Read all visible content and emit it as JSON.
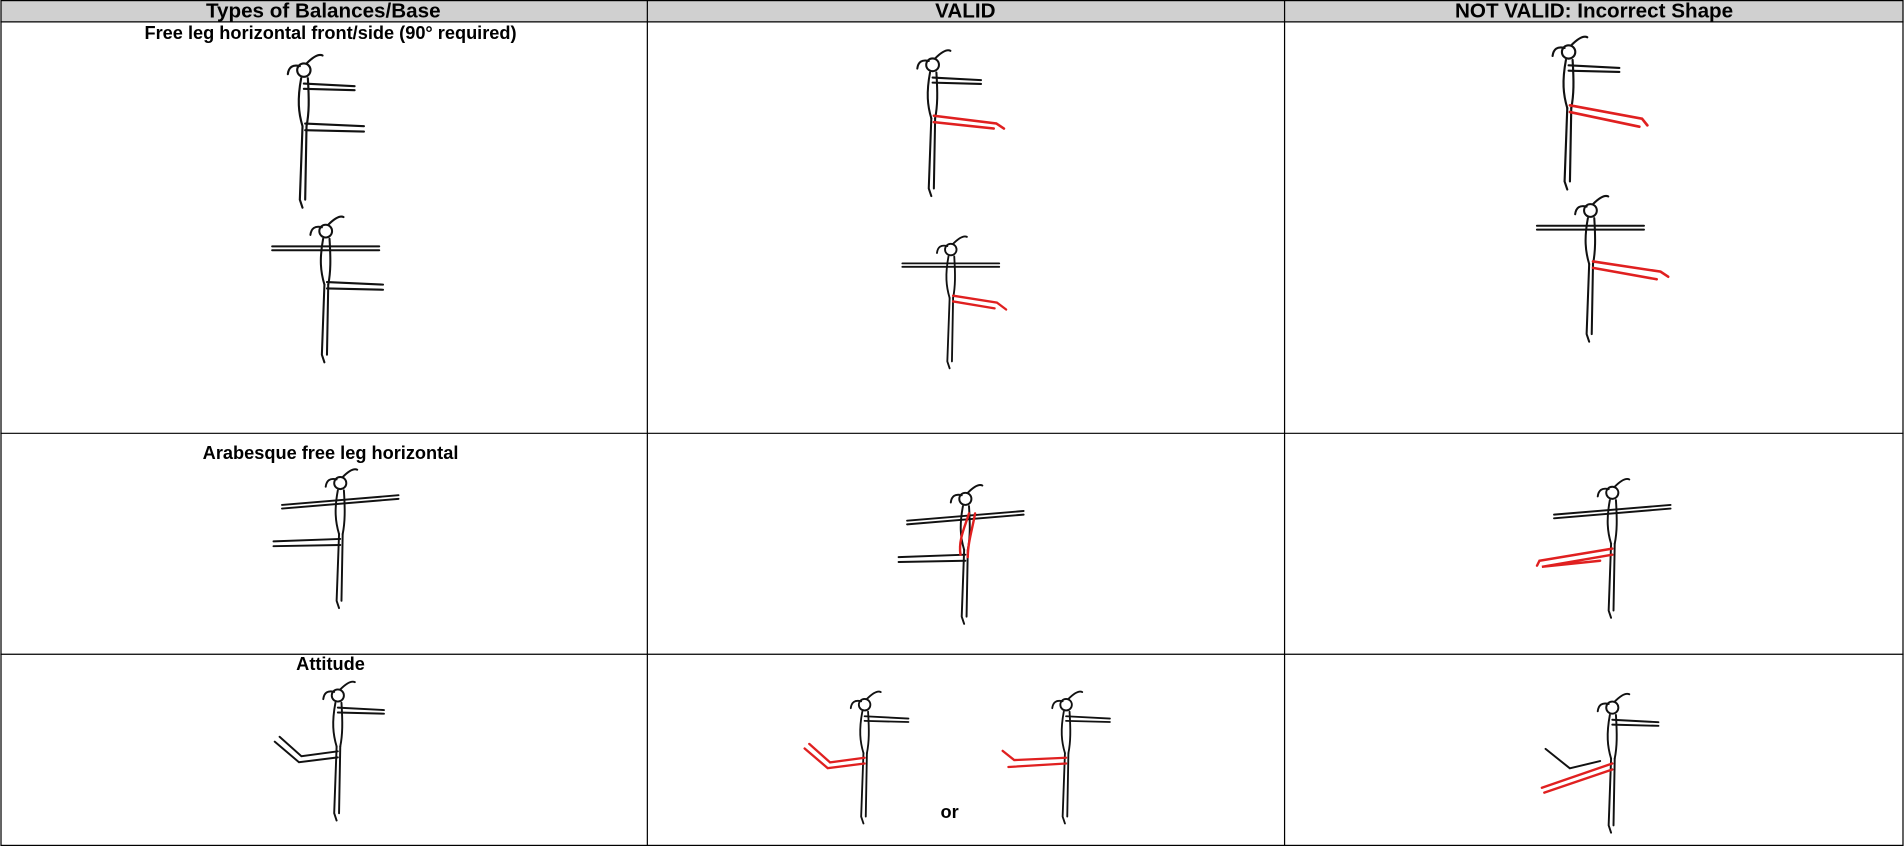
{
  "header": {
    "cells": [
      "Types of Balances/Base",
      "VALID",
      "NOT VALID: Incorrect Shape"
    ]
  },
  "rows": [
    {
      "label": "Free leg horizontal front/side (90° required)"
    },
    {
      "label": "Arabesque free leg horizontal"
    },
    {
      "label": "Attitude",
      "valid_note": "or"
    }
  ]
}
